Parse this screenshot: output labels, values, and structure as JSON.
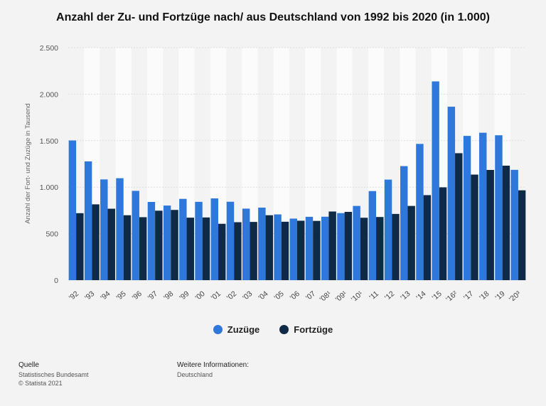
{
  "chart_data": {
    "type": "bar",
    "title": "Anzahl der Zu- und Fortzüge nach/ aus Deutschland von 1992 bis 2020 (in 1.000)",
    "xlabel": "",
    "ylabel": "Anzahl der Fort- und Zuzüge in Tausend",
    "ylim": [
      0,
      2500
    ],
    "yticks": [
      0,
      500,
      1000,
      1500,
      2000,
      2500
    ],
    "ytick_labels": [
      "0",
      "500",
      "1.000",
      "1.500",
      "2.000",
      "2.500"
    ],
    "categories": [
      "'92",
      "'93",
      "'94",
      "'95",
      "'96",
      "'97",
      "'98",
      "'99",
      "'00",
      "'01",
      "'02",
      "'03",
      "'04",
      "'05",
      "'06",
      "'07",
      "'08¹",
      "'09¹",
      "'10¹",
      "'11",
      "'12",
      "'13",
      "'14",
      "'15",
      "'16²",
      "'17",
      "'18",
      "'19",
      "'20³"
    ],
    "series": [
      {
        "name": "Zuzüge",
        "color": "#2f78db",
        "values": [
          1502,
          1277,
          1083,
          1096,
          960,
          841,
          802,
          874,
          842,
          879,
          843,
          769,
          780,
          707,
          662,
          681,
          682,
          721,
          798,
          958,
          1081,
          1226,
          1465,
          2137,
          1865,
          1551,
          1585,
          1558,
          1186
        ]
      },
      {
        "name": "Fortzüge",
        "color": "#0f2a47",
        "values": [
          720,
          815,
          768,
          698,
          677,
          747,
          755,
          672,
          674,
          606,
          623,
          626,
          698,
          628,
          639,
          637,
          738,
          734,
          671,
          679,
          712,
          798,
          914,
          998,
          1365,
          1135,
          1185,
          1231,
          966
        ]
      }
    ],
    "grid": true,
    "legend_position": "bottom-center"
  },
  "legend": {
    "items": [
      {
        "label": "Zuzüge",
        "color": "#2f78db"
      },
      {
        "label": "Fortzüge",
        "color": "#0f2a47"
      }
    ]
  },
  "footer": {
    "source_heading": "Quelle",
    "source_line1": "Statistisches Bundesamt",
    "source_line2": "© Statista 2021",
    "info_heading": "Weitere Informationen:",
    "info_line1": "Deutschland"
  }
}
